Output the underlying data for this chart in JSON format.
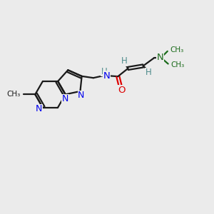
{
  "background_color": "#ebebeb",
  "bond_color": "#1a1a1a",
  "n_color": "#0000ee",
  "o_color": "#dd0000",
  "teal_color": "#4d8b8b",
  "dark_n_color": "#1a6b1a",
  "figsize": [
    3.0,
    3.0
  ],
  "dpi": 100,
  "xlim": [
    0,
    10
  ],
  "ylim": [
    0,
    10
  ]
}
